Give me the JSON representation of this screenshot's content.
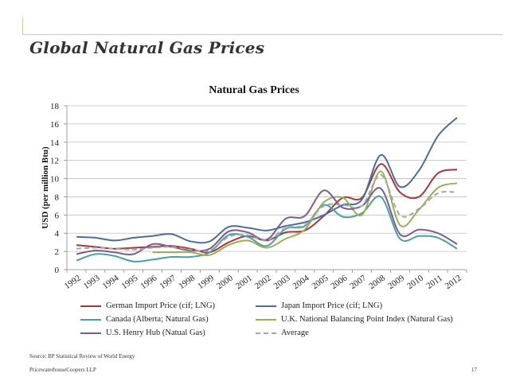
{
  "slide": {
    "title": "Global Natural Gas Prices",
    "source": "Source: BP Statistical Review of World Energy",
    "company": "PricewaterhouseCoopers LLP",
    "page_number": "17"
  },
  "chart_data": {
    "type": "line",
    "title": "Natural Gas Prices",
    "xlabel": "",
    "ylabel": "USD (per million Btu)",
    "ylim": [
      0,
      18
    ],
    "yticks": [
      0,
      2,
      4,
      6,
      8,
      10,
      12,
      14,
      16,
      18
    ],
    "grid": "horizontal",
    "legend_position": "bottom",
    "x": [
      "1992",
      "1993",
      "1994",
      "1995",
      "1996",
      "1997",
      "1998",
      "1999",
      "2000",
      "2001",
      "2002",
      "2003",
      "2004",
      "2005",
      "2006",
      "2007",
      "2008",
      "2009",
      "2010",
      "2011",
      "2012"
    ],
    "series": [
      {
        "name": "German Import Price (cif; LNG)",
        "color": "#a33a3a",
        "dashed": false,
        "values": [
          2.7,
          2.5,
          2.3,
          2.4,
          2.5,
          2.6,
          2.3,
          1.9,
          3.0,
          3.7,
          3.2,
          4.1,
          4.3,
          5.9,
          7.9,
          7.9,
          11.6,
          8.5,
          8.0,
          10.6,
          11.0
        ]
      },
      {
        "name": "Japan Import Price (cif; LNG)",
        "color": "#4a6d9c",
        "dashed": false,
        "values": [
          3.6,
          3.5,
          3.2,
          3.5,
          3.7,
          3.9,
          3.1,
          3.1,
          4.7,
          4.6,
          4.3,
          4.8,
          5.2,
          6.0,
          7.1,
          7.7,
          12.6,
          9.1,
          10.9,
          14.7,
          16.7
        ]
      },
      {
        "name": "Canada (Alberta; Natural Gas)",
        "color": "#4c9ea4",
        "dashed": false,
        "values": [
          1.0,
          1.7,
          1.5,
          0.9,
          1.1,
          1.4,
          1.4,
          1.9,
          3.8,
          3.6,
          2.6,
          4.5,
          4.8,
          7.1,
          5.8,
          6.2,
          8.0,
          3.4,
          3.7,
          3.5,
          2.3
        ]
      },
      {
        "name": "U.K. National Balancing Point Index (Natural Gas)",
        "color": "#9bae5a",
        "dashed": false,
        "values": [
          null,
          null,
          null,
          null,
          1.9,
          1.9,
          1.9,
          1.6,
          2.7,
          3.2,
          2.4,
          3.4,
          4.4,
          7.4,
          7.9,
          6.0,
          10.8,
          4.9,
          6.6,
          9.0,
          9.5
        ]
      },
      {
        "name": "U.S. Henry Hub (Natual Gas)",
        "color": "#7b5d91",
        "dashed": false,
        "values": [
          1.7,
          2.1,
          1.9,
          1.7,
          2.8,
          2.5,
          2.1,
          2.3,
          4.2,
          4.1,
          3.3,
          5.6,
          5.9,
          8.7,
          6.8,
          7.0,
          8.9,
          3.9,
          4.4,
          4.0,
          2.8
        ]
      },
      {
        "name": "Average",
        "color": "#a6a6a6",
        "dashed": true,
        "values": [
          2.3,
          2.4,
          2.3,
          2.2,
          2.4,
          2.5,
          2.2,
          2.1,
          3.6,
          3.8,
          3.2,
          4.6,
          4.9,
          7.0,
          7.1,
          7.0,
          10.4,
          6.0,
          6.7,
          8.4,
          8.5
        ]
      }
    ]
  }
}
